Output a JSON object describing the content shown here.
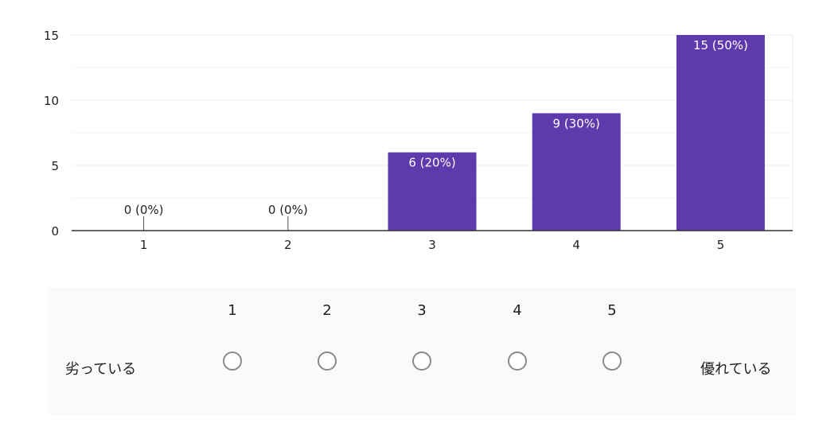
{
  "chart_data": {
    "type": "bar",
    "categories": [
      "1",
      "2",
      "3",
      "4",
      "5"
    ],
    "values": [
      0,
      0,
      6,
      9,
      15
    ],
    "data_labels": [
      "0 (0%)",
      "0 (0%)",
      "6 (20%)",
      "9 (30%)",
      "15 (50%)"
    ],
    "ylim": [
      0,
      15
    ],
    "yticks": [
      0,
      5,
      10,
      15
    ],
    "bar_color": "#5e3aac",
    "grid": true
  },
  "scale": {
    "options": [
      "1",
      "2",
      "3",
      "4",
      "5"
    ],
    "low_label": "劣っている",
    "high_label": "優れている"
  },
  "colors": {
    "grid": "#eeeeee",
    "axis": "#333333",
    "radio_border": "#8a8a8a"
  }
}
